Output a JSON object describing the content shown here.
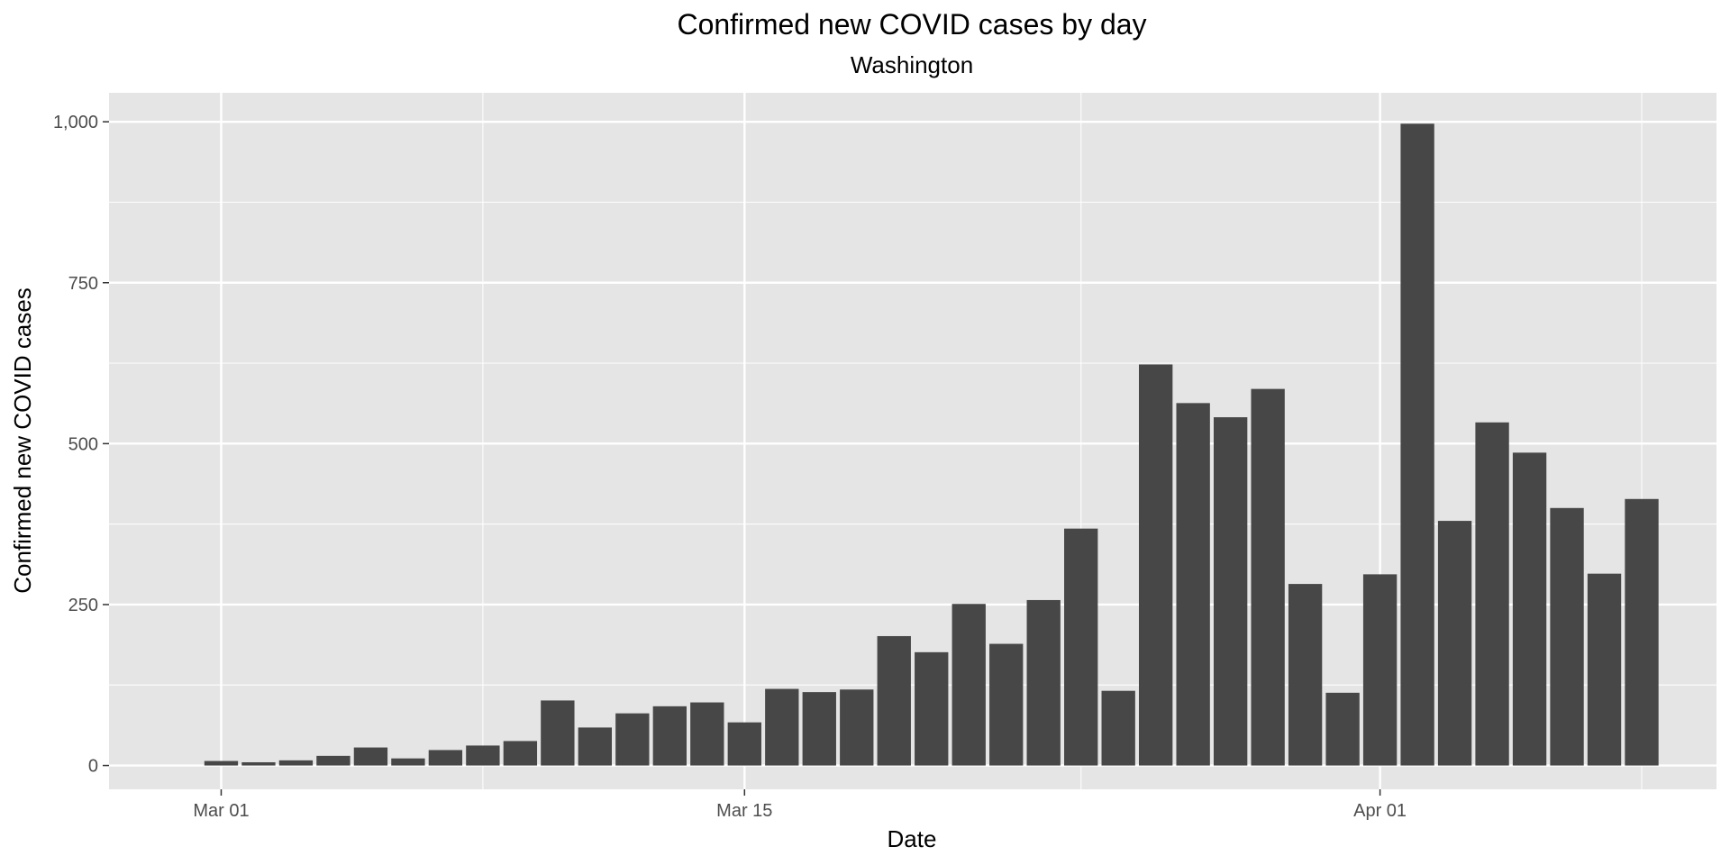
{
  "chart_data": {
    "type": "bar",
    "title": "Confirmed new COVID cases by day",
    "subtitle": "Washington",
    "xlabel": "Date",
    "ylabel": "Confirmed new COVID cases",
    "x": [
      "2020-03-01",
      "2020-03-02",
      "2020-03-03",
      "2020-03-04",
      "2020-03-05",
      "2020-03-06",
      "2020-03-07",
      "2020-03-08",
      "2020-03-09",
      "2020-03-10",
      "2020-03-11",
      "2020-03-12",
      "2020-03-13",
      "2020-03-14",
      "2020-03-15",
      "2020-03-16",
      "2020-03-17",
      "2020-03-18",
      "2020-03-19",
      "2020-03-20",
      "2020-03-21",
      "2020-03-22",
      "2020-03-23",
      "2020-03-24",
      "2020-03-25",
      "2020-03-26",
      "2020-03-27",
      "2020-03-28",
      "2020-03-29",
      "2020-03-30",
      "2020-03-31",
      "2020-04-01",
      "2020-04-02",
      "2020-04-03",
      "2020-04-04",
      "2020-04-05",
      "2020-04-06",
      "2020-04-07",
      "2020-04-08"
    ],
    "values": [
      7,
      5,
      8,
      15,
      28,
      11,
      24,
      31,
      38,
      101,
      59,
      81,
      92,
      98,
      67,
      119,
      114,
      118,
      201,
      176,
      251,
      189,
      257,
      368,
      116,
      623,
      563,
      541,
      585,
      282,
      113,
      297,
      997,
      380,
      533,
      486,
      400,
      298,
      414
    ],
    "ylim": [
      -37,
      1045
    ],
    "y_ticks": [
      {
        "value": 0,
        "label": "0"
      },
      {
        "value": 250,
        "label": "250"
      },
      {
        "value": 500,
        "label": "500"
      },
      {
        "value": 750,
        "label": "750"
      },
      {
        "value": 1000,
        "label": "1,000"
      }
    ],
    "x_ticks": [
      {
        "date": "2020-03-01",
        "label": "Mar 01"
      },
      {
        "date": "2020-03-15",
        "label": "Mar 15"
      },
      {
        "date": "2020-04-01",
        "label": "Apr 01"
      }
    ],
    "x_minor_grid": [
      "2020-03-08",
      "2020-03-24",
      "2020-04-08"
    ],
    "xlim": [
      "2020-02-27",
      "2020-04-10"
    ],
    "grid": true,
    "colors": {
      "panel": "#e5e5e5",
      "bar": "#474747",
      "grid": "#ffffff"
    }
  }
}
